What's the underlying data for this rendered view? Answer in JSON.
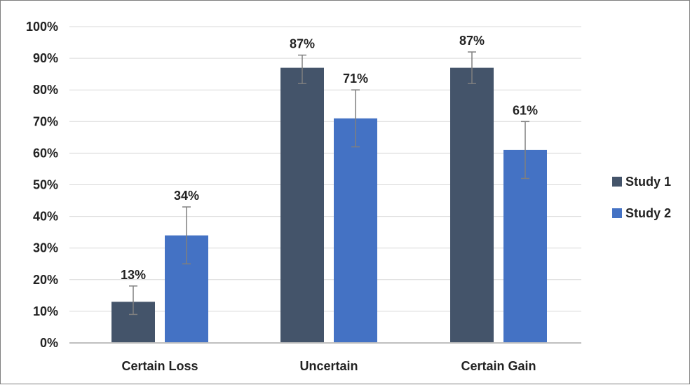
{
  "chart_data": {
    "type": "bar",
    "categories": [
      "Certain Loss",
      "Uncertain",
      "Certain Gain"
    ],
    "series": [
      {
        "name": "Study 1",
        "color": "#44546a",
        "values": [
          13,
          87,
          87
        ],
        "labels": [
          "13%",
          "87%",
          "87%"
        ],
        "error_low": [
          9,
          82,
          82
        ],
        "error_high": [
          18,
          91,
          92
        ]
      },
      {
        "name": "Study 2",
        "color": "#4472c4",
        "values": [
          34,
          71,
          61
        ],
        "labels": [
          "34%",
          "71%",
          "61%"
        ],
        "error_low": [
          25,
          62,
          52
        ],
        "error_high": [
          43,
          80,
          70
        ]
      }
    ],
    "ylim": [
      0,
      100
    ],
    "yticks": [
      "0%",
      "10%",
      "20%",
      "30%",
      "40%",
      "50%",
      "60%",
      "70%",
      "80%",
      "90%",
      "100%"
    ],
    "grid": true,
    "legend": "right",
    "title": "",
    "xlabel": "",
    "ylabel": ""
  }
}
